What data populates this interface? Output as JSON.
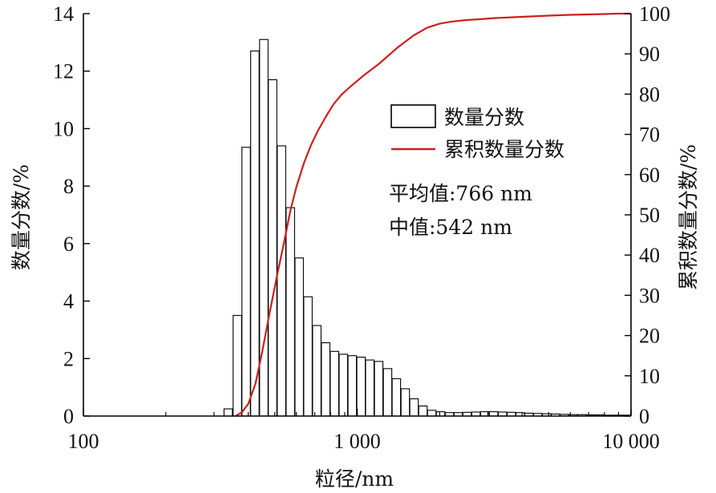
{
  "chart_data": {
    "type": "bar",
    "title": "",
    "xlabel": "粒径/nm",
    "ylabel_left": "数量分数/%",
    "ylabel_right": "累积数量分数/%",
    "x_scale": "log",
    "xlim": [
      100,
      10000
    ],
    "x_ticks": [
      100,
      1000,
      10000
    ],
    "x_tick_labels": [
      "100",
      "1 000",
      "10 000"
    ],
    "ylim_left": [
      0,
      14
    ],
    "y_ticks_left": [
      "0",
      "2",
      "4",
      "6",
      "8",
      "10",
      "12",
      "14"
    ],
    "ylim_right": [
      0,
      100
    ],
    "y_ticks_right": [
      "0",
      "10",
      "20",
      "30",
      "40",
      "50",
      "60",
      "70",
      "80",
      "90",
      "100"
    ],
    "legend_position": "right",
    "series": [
      {
        "name": "数量分数",
        "kind": "bar",
        "axis": "left",
        "color": "#000000",
        "x": [
          338,
          365,
          393,
          423,
          456,
          491,
          529,
          570,
          614,
          661,
          712,
          767,
          826,
          890,
          959,
          1033,
          1112,
          1198,
          1291,
          1390,
          1498,
          1613,
          1738,
          1872,
          2016,
          2172,
          2339,
          2520,
          2714,
          2924,
          3150,
          3393,
          3654,
          3937,
          4240,
          4568,
          4921,
          5300,
          5710,
          6150,
          6626,
          7137,
          7688,
          8282,
          8920,
          9610
        ],
        "values": [
          0.25,
          3.5,
          9.35,
          12.7,
          13.1,
          11.7,
          9.4,
          7.25,
          5.5,
          4.15,
          3.15,
          2.55,
          2.25,
          2.15,
          2.1,
          2.05,
          1.95,
          1.9,
          1.65,
          1.3,
          0.95,
          0.6,
          0.35,
          0.2,
          0.15,
          0.12,
          0.12,
          0.13,
          0.14,
          0.15,
          0.15,
          0.14,
          0.13,
          0.12,
          0.1,
          0.09,
          0.08,
          0.07,
          0.06,
          0.05,
          0.05,
          0.04,
          0.04,
          0.03,
          0.03,
          0.03
        ]
      },
      {
        "name": "累积数量分数",
        "kind": "line",
        "axis": "right",
        "color": "#cc1f1f",
        "x": [
          360,
          380,
          400,
          425,
          450,
          480,
          510,
          540,
          570,
          600,
          640,
          680,
          720,
          770,
          820,
          880,
          950,
          1050,
          1200,
          1400,
          1600,
          1800,
          2000,
          2200,
          2500,
          2800,
          3200,
          4000,
          5000,
          6000,
          7000,
          8000,
          9000,
          10000
        ],
        "values": [
          0,
          1,
          3,
          8,
          16,
          26,
          35,
          43,
          51,
          57,
          63,
          67.5,
          71,
          74.5,
          77.5,
          80,
          82,
          84.5,
          87.5,
          91.5,
          94.5,
          96.5,
          97.5,
          98,
          98.4,
          98.6,
          98.9,
          99.2,
          99.5,
          99.7,
          99.8,
          99.9,
          100,
          100
        ]
      }
    ],
    "annotations": [
      "平均值:766 nm",
      "中值:542 nm"
    ]
  }
}
